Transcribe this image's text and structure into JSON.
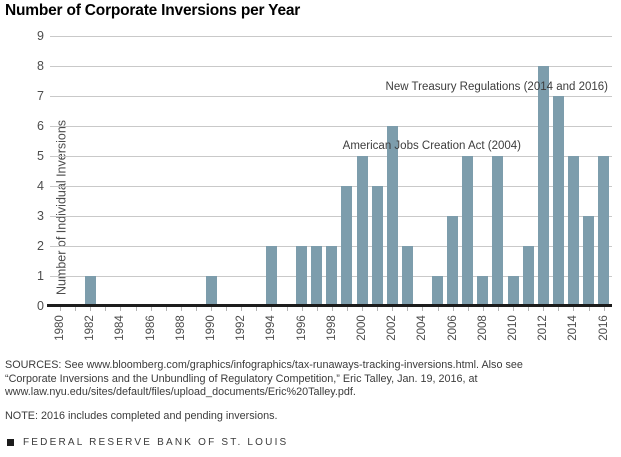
{
  "title": "Number of Corporate Inversions per Year",
  "chart_data": {
    "type": "bar",
    "title": "Number of Corporate Inversions per Year",
    "xlabel": "",
    "ylabel": "Number of Individual Inversions",
    "ylim": [
      0,
      9
    ],
    "yticks": [
      0,
      1,
      2,
      3,
      4,
      5,
      6,
      7,
      8,
      9
    ],
    "grid": true,
    "bar_color": "#7d9dac",
    "x": [
      1980,
      1981,
      1982,
      1983,
      1984,
      1985,
      1986,
      1987,
      1988,
      1989,
      1990,
      1991,
      1992,
      1993,
      1994,
      1995,
      1996,
      1997,
      1998,
      1999,
      2000,
      2001,
      2002,
      2003,
      2004,
      2005,
      2006,
      2007,
      2008,
      2009,
      2010,
      2011,
      2012,
      2013,
      2014,
      2015,
      2016
    ],
    "values": [
      0,
      0,
      1,
      0,
      0,
      0,
      0,
      0,
      0,
      0,
      1,
      0,
      0,
      0,
      2,
      0,
      2,
      2,
      2,
      4,
      5,
      4,
      6,
      2,
      0,
      1,
      3,
      5,
      1,
      5,
      1,
      2,
      8,
      7,
      5,
      3,
      5
    ],
    "xtick_labels": [
      "1980",
      "1982",
      "1984",
      "1986",
      "1988",
      "1990",
      "1992",
      "1994",
      "1996",
      "1998",
      "2000",
      "2002",
      "2004",
      "2006",
      "2008",
      "2010",
      "2012",
      "2014",
      "2016"
    ],
    "annotations": [
      {
        "text": "New Treasury Regulations (2014 and 2016)"
      },
      {
        "text": "American Jobs Creation Act (2004)"
      }
    ]
  },
  "footer": {
    "sources_lines": [
      "SOURCES: See www.bloomberg.com/graphics/infographics/tax-runaways-tracking-inversions.html. Also see",
      "“Corporate Inversions and the Unbundling of Regulatory Competition,” Eric Talley, Jan. 19, 2016, at",
      "www.law.nyu.edu/sites/default/files/upload_documents/Eric%20Talley.pdf."
    ],
    "note": "NOTE: 2016 includes completed and pending inversions.",
    "brand": "FEDERAL RESERVE BANK OF ST. LOUIS"
  }
}
